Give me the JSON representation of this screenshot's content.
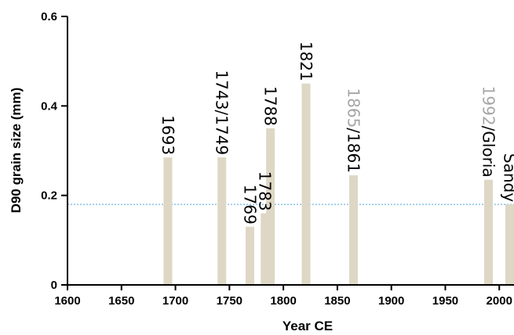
{
  "chart_data": {
    "type": "bar",
    "xlabel": "Year CE",
    "ylabel": "D90 grain size (mm)",
    "xlim": [
      1600,
      2010
    ],
    "ylim": [
      0,
      0.6
    ],
    "x_ticks": [
      "1600",
      "1650",
      "1700",
      "1750",
      "1800",
      "1850",
      "1900",
      "1950",
      "2000"
    ],
    "y_ticks": [
      "0",
      "0.2",
      "0.4",
      "0.6"
    ],
    "bar_color": "#ded7c5",
    "reference_line": {
      "y": 0.18,
      "style": "dotted",
      "color": "#4aa3df"
    },
    "bars": [
      {
        "x": 1693,
        "value": 0.285,
        "label": "1693"
      },
      {
        "x": 1743,
        "value": 0.285,
        "label": "1743/1749"
      },
      {
        "x": 1769,
        "value": 0.13,
        "label": "1769"
      },
      {
        "x": 1783,
        "value": 0.16,
        "label": "1783"
      },
      {
        "x": 1788,
        "value": 0.35,
        "label": "1788"
      },
      {
        "x": 1821,
        "value": 0.45,
        "label": "1821"
      },
      {
        "x": 1865,
        "value": 0.245,
        "label_grey": "1865",
        "label": "/1861"
      },
      {
        "x": 1990,
        "value": 0.235,
        "label_grey": "1992",
        "label": "/Gloria"
      },
      {
        "x": 2012,
        "value": 0.18,
        "label": "Sandy"
      }
    ]
  }
}
